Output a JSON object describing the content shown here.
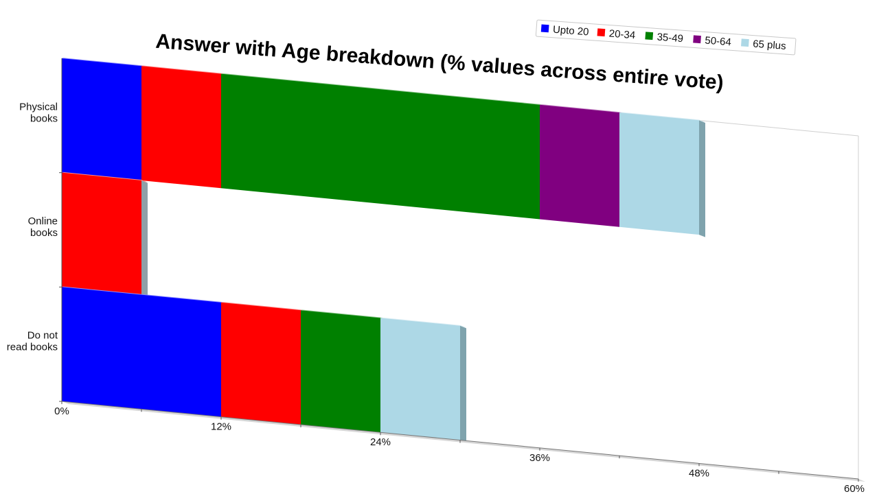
{
  "chart_data": {
    "type": "bar",
    "orientation": "horizontal",
    "stacked": true,
    "title": "Answer with Age breakdown (% values across entire vote)",
    "categories": [
      "Physical books",
      "Online books",
      "Do not read books"
    ],
    "category_lines": [
      [
        "Physical",
        "books"
      ],
      [
        "Online",
        "books"
      ],
      [
        "Do not",
        "read books"
      ]
    ],
    "series": [
      {
        "name": "Upto 20",
        "color": "#0000ff",
        "values": [
          6,
          0,
          12
        ]
      },
      {
        "name": "20-34",
        "color": "#ff0000",
        "values": [
          6,
          6,
          6
        ]
      },
      {
        "name": "35-49",
        "color": "#008000",
        "values": [
          24,
          0,
          6
        ]
      },
      {
        "name": "50-64",
        "color": "#800080",
        "values": [
          6,
          0,
          0
        ]
      },
      {
        "name": "65 plus",
        "color": "#add8e6",
        "values": [
          6,
          0,
          6
        ]
      }
    ],
    "xlim": [
      0,
      60
    ],
    "x_ticks": [
      "0%",
      "12%",
      "24%",
      "36%",
      "48%",
      "60%"
    ],
    "xlabel": "",
    "ylabel": "",
    "legend_position": "top-right",
    "grid": false
  }
}
